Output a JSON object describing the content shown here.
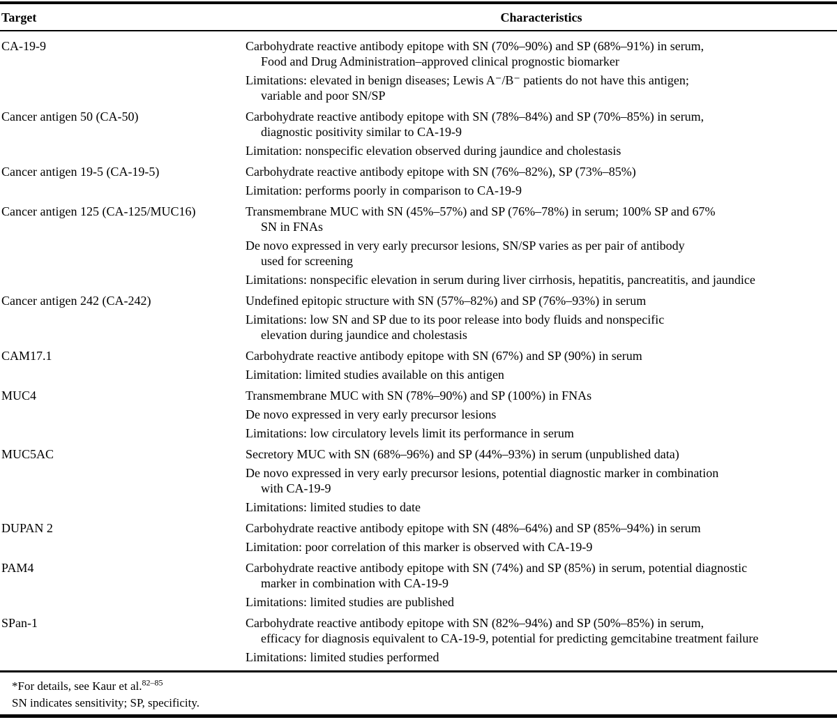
{
  "page": {
    "background_color": "#ffffff",
    "text_color": "#000000",
    "rule_color": "#000000"
  },
  "table": {
    "header": {
      "target": "Target",
      "characteristics": "Characteristics"
    },
    "rows": [
      {
        "target": "CA-19-9",
        "paragraphs": [
          "Carbohydrate reactive antibody epitope with SN (70%–90%) and SP (68%–91%) in serum,\nFood and Drug Administration–approved clinical prognostic biomarker",
          "Limitations: elevated in benign diseases; Lewis A⁻/B⁻ patients do not have this antigen;\nvariable and poor SN/SP"
        ]
      },
      {
        "target": "Cancer antigen 50 (CA-50)",
        "paragraphs": [
          "Carbohydrate reactive antibody epitope with SN (78%–84%) and SP (70%–85%) in serum,\ndiagnostic positivity similar to CA-19-9",
          "Limitation: nonspecific elevation observed during jaundice and cholestasis"
        ]
      },
      {
        "target": "Cancer antigen 19-5 (CA-19-5)",
        "paragraphs": [
          "Carbohydrate reactive antibody epitope with SN (76%–82%), SP (73%–85%)",
          "Limitation: performs poorly in comparison to CA-19-9"
        ]
      },
      {
        "target": "Cancer antigen 125 (CA-125/MUC16)",
        "paragraphs": [
          "Transmembrane MUC with SN (45%–57%) and SP (76%–78%) in serum; 100% SP and 67%\nSN in FNAs",
          "De novo expressed in very early precursor lesions, SN/SP varies as per pair of antibody\nused for screening",
          "Limitations: nonspecific elevation in serum during liver cirrhosis, hepatitis, pancreatitis, and jaundice"
        ]
      },
      {
        "target": "Cancer antigen 242 (CA-242)",
        "paragraphs": [
          "Undefined epitopic structure with SN (57%–82%) and SP (76%–93%) in serum",
          "Limitations: low SN and SP due to its poor release into body fluids and nonspecific\nelevation during jaundice and cholestasis"
        ]
      },
      {
        "target": "CAM17.1",
        "paragraphs": [
          "Carbohydrate reactive antibody epitope with SN (67%) and SP (90%) in serum",
          "Limitation: limited studies available on this antigen"
        ]
      },
      {
        "target": "MUC4",
        "paragraphs": [
          "Transmembrane MUC with SN (78%–90%) and SP (100%) in FNAs",
          "De novo expressed in very early precursor lesions",
          "Limitations: low circulatory levels limit its performance in serum"
        ]
      },
      {
        "target": "MUC5AC",
        "paragraphs": [
          "Secretory MUC with SN (68%–96%) and SP (44%–93%) in serum (unpublished data)",
          "De novo expressed in very early precursor lesions, potential diagnostic marker in combination\nwith CA-19-9",
          "Limitations: limited studies to date"
        ]
      },
      {
        "target": "DUPAN 2",
        "paragraphs": [
          "Carbohydrate reactive antibody epitope with SN (48%–64%) and SP (85%–94%) in serum",
          "Limitation: poor correlation of this marker is observed with CA-19-9"
        ]
      },
      {
        "target": "PAM4",
        "paragraphs": [
          "Carbohydrate reactive antibody epitope with SN (74%) and SP (85%) in serum, potential diagnostic\nmarker in combination with CA-19-9",
          "Limitations: limited studies are published"
        ]
      },
      {
        "target": "SPan-1",
        "paragraphs": [
          "Carbohydrate reactive antibody epitope with SN (82%–94%) and SP (50%–85%) in serum,\nefficacy for diagnosis equivalent to CA-19-9, potential for predicting gemcitabine treatment failure",
          "Limitations: limited studies performed"
        ]
      }
    ]
  },
  "footnotes": {
    "details": {
      "text": "*For details, see Kaur et al.",
      "reference": "82–85"
    },
    "abbreviations": "SN indicates sensitivity; SP, specificity."
  }
}
